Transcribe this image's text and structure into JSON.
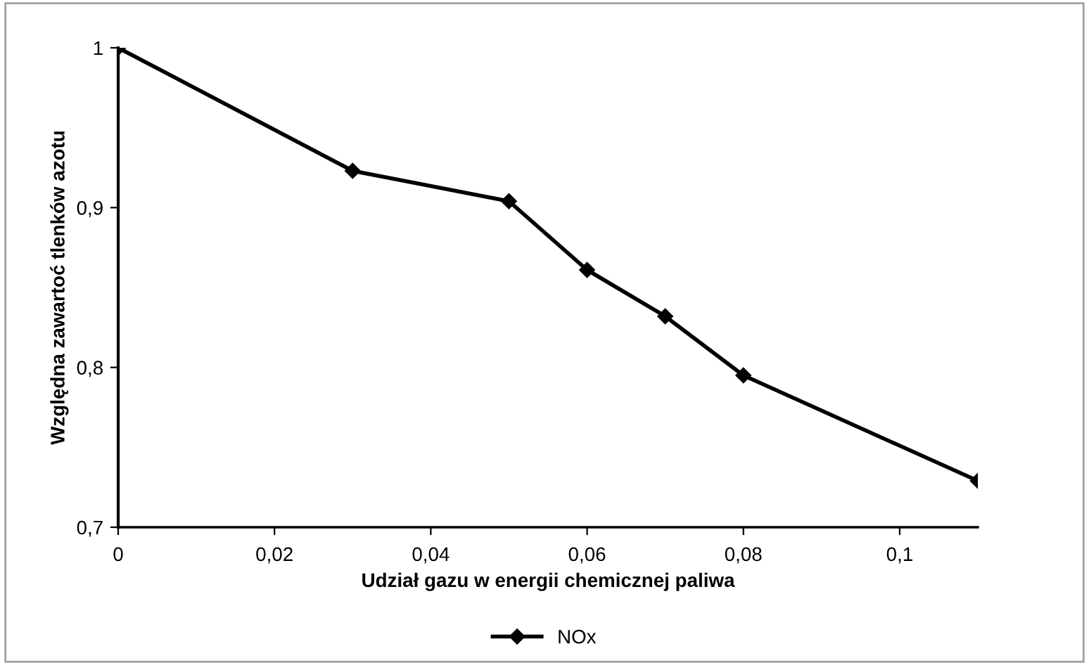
{
  "chart_data": {
    "type": "line",
    "xlabel": "Udział gazu w energii chemicznej paliwa",
    "ylabel": "Względna zawartoć tlenków azotu",
    "x": [
      0,
      0.03,
      0.05,
      0.06,
      0.07,
      0.08,
      0.11
    ],
    "series": [
      {
        "name": "NOx",
        "color": "#000000",
        "values": [
          1,
          0.923,
          0.904,
          0.861,
          0.832,
          0.795,
          0.729
        ]
      }
    ],
    "xlim": [
      0,
      0.11
    ],
    "xticks": [
      0,
      {
        "value": 0.02,
        "label": "0,02"
      },
      {
        "value": 0.04,
        "label": "0,04"
      },
      {
        "value": 0.06,
        "label": "0,06"
      },
      {
        "value": 0.08,
        "label": "0,08"
      },
      {
        "value": 0.1,
        "label": "0,1"
      }
    ],
    "ylim": [
      0.7,
      1
    ],
    "yticks": [
      {
        "value": 0.7,
        "label": "0,7"
      },
      {
        "value": 0.8,
        "label": "0,8"
      },
      {
        "value": 0.9,
        "label": "0,9"
      },
      1
    ],
    "grid": false,
    "legend": "bottom",
    "marker": "diamond",
    "line_style": "solid"
  }
}
